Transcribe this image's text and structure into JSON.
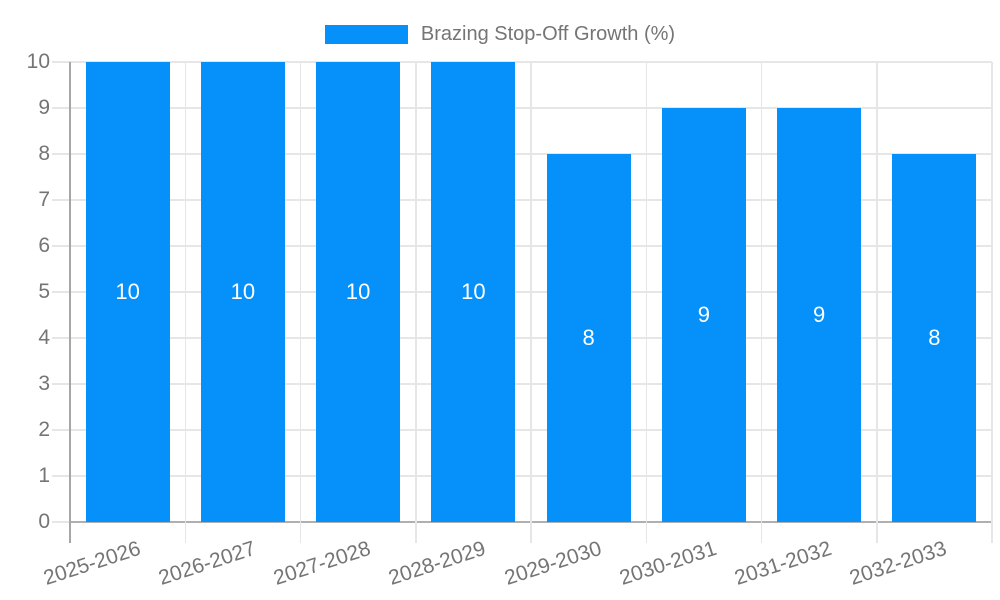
{
  "legend": {
    "label": "Brazing Stop-Off Growth (%)"
  },
  "chart_data": {
    "type": "bar",
    "title": "",
    "categories": [
      "2025-2026",
      "2026-2027",
      "2027-2028",
      "2028-2029",
      "2029-2030",
      "2030-2031",
      "2031-2032",
      "2032-2033"
    ],
    "series": [
      {
        "name": "Brazing Stop-Off Growth (%)",
        "values": [
          10,
          10,
          10,
          10,
          8,
          9,
          9,
          8
        ]
      }
    ],
    "bar_value_labels": [
      10,
      10,
      10,
      10,
      8,
      9,
      9,
      8
    ],
    "xlabel": "",
    "ylabel": "",
    "ylim": [
      0,
      10
    ],
    "yticks": [
      0,
      1,
      2,
      3,
      4,
      5,
      6,
      7,
      8,
      9,
      10
    ],
    "grid": "on",
    "legend_position": "top-center",
    "colors": {
      "bar": "#0690fa",
      "bar_label_text": "#ffffff",
      "axis_text": "#757575",
      "gridline": "#e6e6e6",
      "axis_line": "#a6a6a6",
      "baseline": "#b0b0b0"
    }
  }
}
